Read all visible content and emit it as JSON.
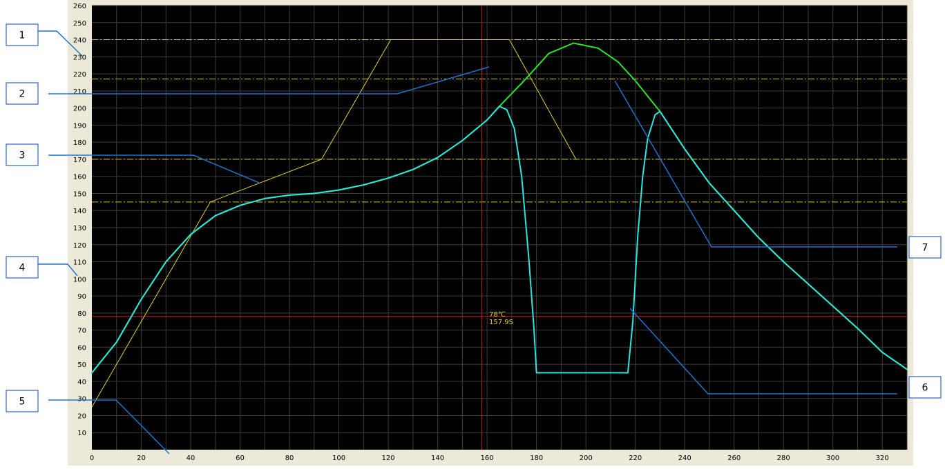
{
  "chart_data": {
    "type": "line",
    "xlim": [
      0,
      330
    ],
    "ylim": [
      0,
      260
    ],
    "x_ticks": [
      0,
      20,
      40,
      60,
      80,
      100,
      120,
      140,
      160,
      180,
      200,
      220,
      240,
      260,
      280,
      300,
      320
    ],
    "y_ticks": [
      10,
      20,
      30,
      40,
      50,
      60,
      70,
      80,
      90,
      100,
      110,
      120,
      130,
      140,
      150,
      160,
      170,
      180,
      190,
      200,
      210,
      220,
      230,
      240,
      250,
      260
    ],
    "grid": true,
    "reference_lines": [
      240,
      217,
      170,
      145
    ],
    "cursor": {
      "x": 157.9,
      "y": 78,
      "temp_label": "78℃",
      "time_label": "157.9S"
    },
    "series": [
      {
        "color": "#e6d22a",
        "points": [
          [
            0,
            25
          ],
          [
            48,
            145
          ],
          [
            93,
            170
          ],
          [
            121,
            240
          ],
          [
            169,
            240
          ],
          [
            196,
            170
          ]
        ]
      },
      {
        "color": "#26e626",
        "points": [
          [
            0,
            45
          ],
          [
            10,
            63
          ],
          [
            20,
            88
          ],
          [
            30,
            110
          ],
          [
            40,
            126
          ],
          [
            50,
            137
          ],
          [
            60,
            143
          ],
          [
            70,
            147
          ],
          [
            80,
            149
          ],
          [
            90,
            150
          ],
          [
            100,
            152
          ],
          [
            110,
            155
          ],
          [
            120,
            159
          ],
          [
            130,
            164
          ],
          [
            140,
            171
          ],
          [
            150,
            181
          ],
          [
            160,
            193
          ],
          [
            165,
            201
          ],
          [
            175,
            216
          ],
          [
            185,
            232
          ],
          [
            195,
            238
          ],
          [
            205,
            235
          ],
          [
            213,
            227
          ],
          [
            220,
            216
          ],
          [
            230,
            198
          ],
          [
            240,
            176
          ],
          [
            250,
            156
          ],
          [
            260,
            140
          ],
          [
            270,
            124
          ],
          [
            280,
            110
          ],
          [
            290,
            97
          ],
          [
            300,
            84
          ],
          [
            310,
            71
          ],
          [
            320,
            57
          ],
          [
            330,
            47
          ]
        ]
      },
      {
        "color": "#28e8e0",
        "points": [
          [
            0,
            45
          ],
          [
            10,
            63
          ],
          [
            20,
            88
          ],
          [
            30,
            110
          ],
          [
            40,
            126
          ],
          [
            50,
            137
          ],
          [
            60,
            143
          ],
          [
            70,
            147
          ],
          [
            80,
            149
          ],
          [
            90,
            150
          ],
          [
            100,
            152
          ],
          [
            110,
            155
          ],
          [
            120,
            159
          ],
          [
            130,
            164
          ],
          [
            140,
            171
          ],
          [
            150,
            181
          ],
          [
            160,
            193
          ],
          [
            165,
            201
          ],
          [
            168,
            199
          ],
          [
            171,
            188
          ],
          [
            174,
            160
          ],
          [
            177,
            110
          ],
          [
            179,
            70
          ],
          [
            180,
            45
          ],
          [
            217,
            45
          ],
          [
            219,
            75
          ],
          [
            221,
            125
          ],
          [
            223,
            160
          ],
          [
            225,
            182
          ],
          [
            228,
            196
          ],
          [
            230,
            198
          ],
          [
            240,
            176
          ],
          [
            250,
            156
          ],
          [
            260,
            140
          ],
          [
            270,
            124
          ],
          [
            280,
            110
          ],
          [
            290,
            97
          ],
          [
            300,
            84
          ],
          [
            310,
            71
          ],
          [
            320,
            57
          ],
          [
            330,
            47
          ]
        ]
      }
    ],
    "callouts": [
      {
        "label": "1"
      },
      {
        "label": "2"
      },
      {
        "label": "3"
      },
      {
        "label": "4"
      },
      {
        "label": "5"
      },
      {
        "label": "6"
      },
      {
        "label": "7"
      }
    ]
  }
}
